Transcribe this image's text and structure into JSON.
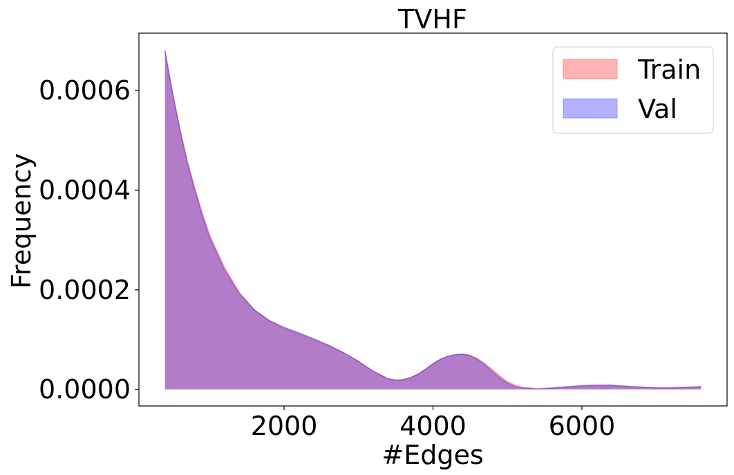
{
  "chart_data": {
    "type": "area",
    "title": "TVHF",
    "xlabel": "#Edges",
    "ylabel": "Frequency",
    "xlim": [
      50,
      7950
    ],
    "ylim": [
      -3.3e-05,
      0.000715
    ],
    "xticks": [
      2000,
      4000,
      6000
    ],
    "xtick_labels": [
      "2000",
      "4000",
      "6000"
    ],
    "yticks": [
      0.0,
      0.0002,
      0.0004,
      0.0006
    ],
    "ytick_labels": [
      "0.0000",
      "0.0002",
      "0.0004",
      "0.0006"
    ],
    "grid": false,
    "legend": {
      "position": "top-right",
      "entries": [
        "Train",
        "Val"
      ]
    },
    "series": [
      {
        "name": "Train",
        "color": "#ff0000",
        "x": [
          400,
          500,
          600,
          700,
          800,
          900,
          1000,
          1200,
          1400,
          1600,
          1800,
          2000,
          2200,
          2400,
          2600,
          2800,
          3000,
          3200,
          3400,
          3500,
          3600,
          3700,
          3800,
          3900,
          4000,
          4100,
          4200,
          4300,
          4400,
          4500,
          4600,
          4700,
          4800,
          4900,
          5000,
          5100,
          5200,
          5400,
          5600,
          5800,
          6000,
          6200,
          6400,
          6600,
          6800,
          7000,
          7200,
          7400,
          7600
        ],
        "y": [
          0.00068,
          0.0006,
          0.000525,
          0.00046,
          0.000405,
          0.000355,
          0.00031,
          0.000245,
          0.000195,
          0.00016,
          0.000138,
          0.000123,
          0.000112,
          0.0001,
          8.8e-05,
          7.4e-05,
          5.7e-05,
          3.7e-05,
          2.2e-05,
          1.9e-05,
          2e-05,
          2.4e-05,
          3.1e-05,
          4.1e-05,
          5.2e-05,
          6.1e-05,
          6.7e-05,
          7e-05,
          7.1e-05,
          6.9e-05,
          6.2e-05,
          5.2e-05,
          4e-05,
          2.7e-05,
          1.6e-05,
          9e-06,
          5e-06,
          2e-06,
          3e-06,
          5e-06,
          7e-06,
          8e-06,
          8e-06,
          6e-06,
          5e-06,
          4e-06,
          4e-06,
          5e-06,
          6e-06
        ]
      },
      {
        "name": "Val",
        "color": "#0000ff",
        "x": [
          400,
          500,
          600,
          700,
          800,
          900,
          1000,
          1200,
          1400,
          1600,
          1800,
          2000,
          2200,
          2400,
          2600,
          2800,
          3000,
          3200,
          3400,
          3500,
          3600,
          3700,
          3800,
          3900,
          4000,
          4100,
          4200,
          4300,
          4400,
          4500,
          4600,
          4700,
          4800,
          4900,
          5000,
          5100,
          5200,
          5400,
          5600,
          5800,
          6000,
          6200,
          6400,
          6600,
          6800,
          7000,
          7200,
          7400,
          7600
        ],
        "y": [
          0.00068,
          0.000595,
          0.00052,
          0.000455,
          0.0004,
          0.00035,
          0.000305,
          0.00024,
          0.000192,
          0.00016,
          0.000139,
          0.000125,
          0.000114,
          0.000102,
          8.9e-05,
          7.4e-05,
          5.6e-05,
          3.6e-05,
          2.1e-05,
          1.9e-05,
          2e-05,
          2.4e-05,
          3.1e-05,
          4.1e-05,
          5.2e-05,
          6.1e-05,
          6.7e-05,
          7e-05,
          7.1e-05,
          6.8e-05,
          6e-05,
          4.9e-05,
          3.6e-05,
          2.3e-05,
          1.3e-05,
          6e-06,
          3e-06,
          1e-06,
          3e-06,
          6e-06,
          8e-06,
          9e-06,
          9e-06,
          7e-06,
          5e-06,
          3e-06,
          3e-06,
          4e-06,
          6e-06
        ]
      }
    ]
  }
}
